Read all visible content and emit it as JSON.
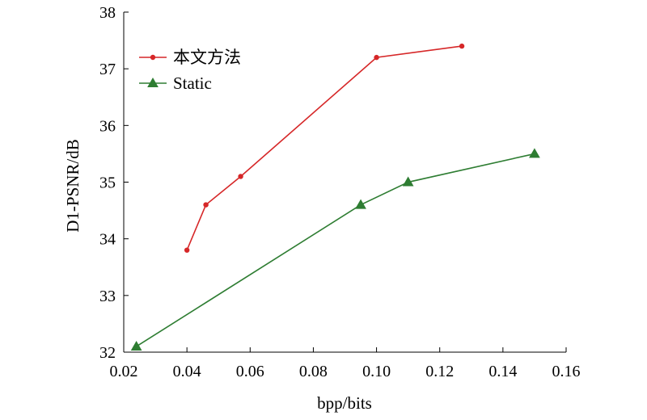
{
  "chart_data": {
    "type": "line",
    "xlabel": "bpp/bits",
    "ylabel": "D1-PSNR/dB",
    "xlim": [
      0.02,
      0.16
    ],
    "ylim": [
      32,
      38
    ],
    "xticks": [
      "0.02",
      "0.04",
      "0.06",
      "0.08",
      "0.10",
      "0.12",
      "0.14",
      "0.16"
    ],
    "yticks": [
      "32",
      "33",
      "34",
      "35",
      "36",
      "37",
      "38"
    ],
    "grid": false,
    "legend_position": "top-left",
    "series": [
      {
        "name": "本文方法",
        "color": "#d62728",
        "marker": "circle",
        "x": [
          0.04,
          0.046,
          0.057,
          0.1,
          0.127
        ],
        "y": [
          33.8,
          34.6,
          35.1,
          37.2,
          37.4
        ]
      },
      {
        "name": "Static",
        "color": "#2e7d32",
        "marker": "triangle",
        "x": [
          0.024,
          0.095,
          0.11,
          0.15
        ],
        "y": [
          32.1,
          34.6,
          35.0,
          35.5
        ]
      }
    ]
  }
}
